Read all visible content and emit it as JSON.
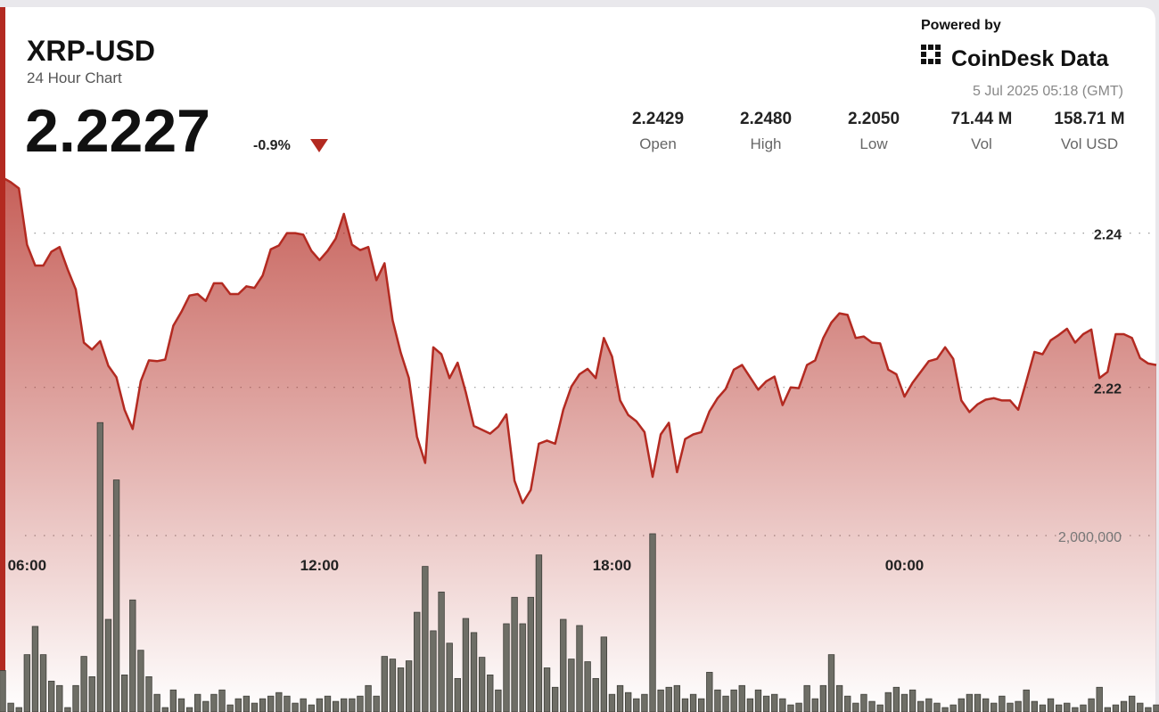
{
  "header": {
    "symbol": "XRP-USD",
    "subtitle": "24 Hour Chart",
    "price": "2.2227",
    "change": "-0.9%",
    "powered_by": "Powered by",
    "brand": "CoinDesk Data",
    "timestamp": "5 Jul 2025 05:18 (GMT)",
    "stats": [
      {
        "value": "2.2429",
        "label": "Open"
      },
      {
        "value": "2.2480",
        "label": "High"
      },
      {
        "value": "2.2050",
        "label": "Low"
      },
      {
        "value": "71.44 M",
        "label": "Vol"
      },
      {
        "value": "158.71 M",
        "label": "Vol USD"
      }
    ]
  },
  "chart_data": [
    {
      "type": "line",
      "color": "#b32a21",
      "grid": true,
      "xlim": [
        0,
        142
      ],
      "xticks": [
        {
          "value": 3,
          "label": "06:00"
        },
        {
          "value": 39,
          "label": "12:00"
        },
        {
          "value": 75,
          "label": "18:00"
        },
        {
          "value": 111,
          "label": "00:00"
        }
      ],
      "ylim": [
        2.1779,
        2.2477
      ],
      "yticks": [
        2.22,
        2.24
      ],
      "values": [
        2.2472,
        2.2466,
        2.2458,
        2.2385,
        2.2358,
        2.2358,
        2.2376,
        2.2382,
        2.2353,
        2.2327,
        2.2258,
        2.2249,
        2.226,
        2.2228,
        2.2213,
        2.2171,
        2.2146,
        2.2208,
        2.2235,
        2.2234,
        2.2236,
        2.228,
        2.2298,
        2.2319,
        2.2321,
        2.2312,
        2.2335,
        2.2335,
        2.2321,
        2.2321,
        2.2331,
        2.2329,
        2.2345,
        2.2379,
        2.2384,
        2.24,
        2.24,
        2.2398,
        2.2377,
        2.2365,
        2.2377,
        2.2393,
        2.2425,
        2.2385,
        2.2378,
        2.2382,
        2.2339,
        2.2361,
        2.2287,
        2.2245,
        2.2212,
        2.2136,
        2.2102,
        2.2252,
        2.2243,
        2.2212,
        2.2232,
        2.2194,
        2.215,
        2.2145,
        2.214,
        2.2149,
        2.2165,
        2.2079,
        2.205,
        2.2067,
        2.2127,
        2.2131,
        2.2127,
        2.2171,
        2.2201,
        2.2217,
        2.2224,
        2.2212,
        2.2264,
        2.224,
        2.2183,
        2.2164,
        2.2156,
        2.2142,
        2.2084,
        2.2139,
        2.2154,
        2.209,
        2.2133,
        2.2139,
        2.2142,
        2.2169,
        2.2186,
        2.2198,
        2.2223,
        2.2229,
        2.2213,
        2.2197,
        2.2208,
        2.2214,
        2.2177,
        2.22,
        2.2199,
        2.2229,
        2.2235,
        2.2264,
        2.2284,
        2.2296,
        2.2294,
        2.2264,
        2.2266,
        2.2258,
        2.2257,
        2.2223,
        2.2217,
        2.2188,
        2.2206,
        2.222,
        2.2234,
        2.2237,
        2.2252,
        2.2237,
        2.2183,
        2.2168,
        2.2178,
        2.2184,
        2.2186,
        2.2183,
        2.2183,
        2.2171,
        2.2208,
        2.2246,
        2.2243,
        2.2261,
        2.2268,
        2.2276,
        2.2258,
        2.2269,
        2.2275,
        2.2212,
        2.222,
        2.2269,
        2.2269,
        2.2264,
        2.2238,
        2.2231,
        2.2229
      ]
    },
    {
      "type": "bar",
      "color": "#6e6e66",
      "grid": true,
      "ylim": [
        0,
        6100000
      ],
      "yticks": [
        {
          "value": 2000000,
          "label": "2,000,000"
        }
      ],
      "values": [
        470000,
        100000,
        50000,
        650000,
        970000,
        650000,
        350000,
        300000,
        50000,
        300000,
        630000,
        400000,
        3280000,
        1050000,
        2630000,
        420000,
        1270000,
        700000,
        400000,
        200000,
        50000,
        250000,
        150000,
        50000,
        200000,
        120000,
        200000,
        250000,
        80000,
        150000,
        180000,
        100000,
        150000,
        180000,
        220000,
        180000,
        100000,
        150000,
        80000,
        150000,
        180000,
        120000,
        150000,
        150000,
        180000,
        300000,
        180000,
        630000,
        600000,
        500000,
        580000,
        1130000,
        1650000,
        920000,
        1360000,
        780000,
        380000,
        1060000,
        900000,
        620000,
        420000,
        250000,
        1000000,
        1300000,
        1000000,
        1300000,
        1780000,
        500000,
        280000,
        1050000,
        600000,
        980000,
        570000,
        380000,
        850000,
        200000,
        300000,
        220000,
        150000,
        200000,
        2020000,
        250000,
        280000,
        300000,
        150000,
        200000,
        150000,
        450000,
        250000,
        180000,
        250000,
        300000,
        150000,
        250000,
        180000,
        200000,
        150000,
        80000,
        100000,
        300000,
        150000,
        300000,
        650000,
        300000,
        180000,
        100000,
        200000,
        120000,
        80000,
        220000,
        280000,
        200000,
        250000,
        120000,
        150000,
        100000,
        50000,
        80000,
        150000,
        200000,
        200000,
        150000,
        100000,
        180000,
        100000,
        120000,
        250000,
        120000,
        80000,
        150000,
        80000,
        100000,
        50000,
        80000,
        150000,
        280000,
        50000,
        80000,
        120000,
        180000,
        100000,
        50000,
        80000
      ]
    }
  ]
}
